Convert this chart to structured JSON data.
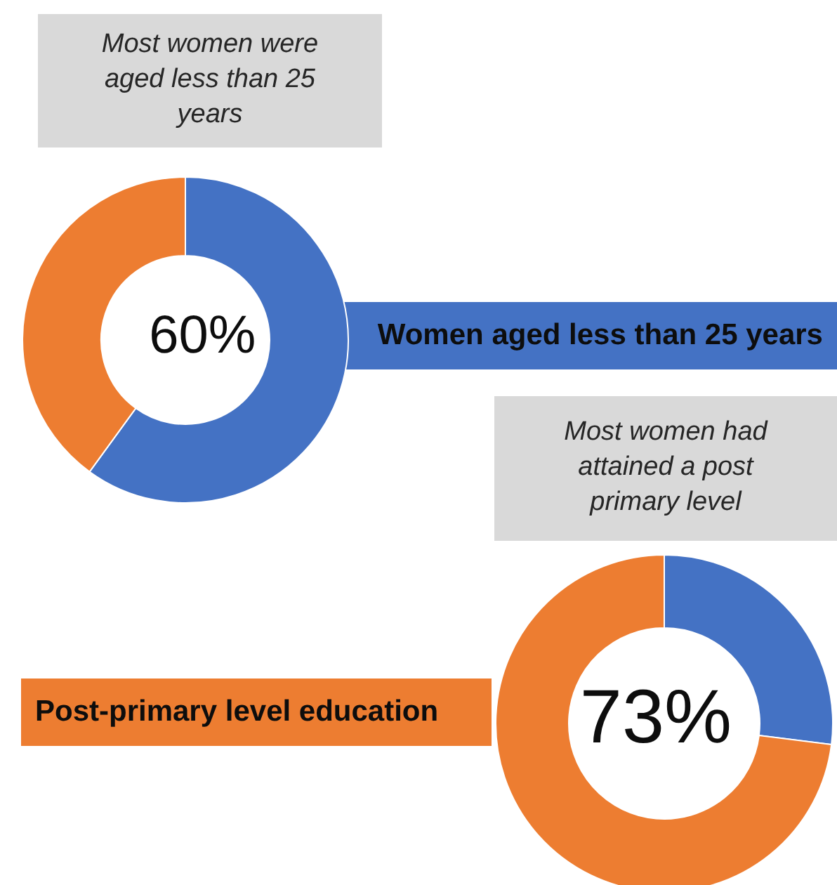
{
  "chart_data": [
    {
      "type": "donut",
      "categories": [
        "Women aged less than 25 years",
        null
      ],
      "values": [
        60,
        40
      ],
      "colors": [
        "#4472c4",
        "#ed7d31"
      ],
      "value_labels": [
        "60%",
        null
      ],
      "annotations": [
        "Most women were aged less than 25 years"
      ]
    },
    {
      "type": "donut",
      "categories": [
        null,
        "Post-primary level education"
      ],
      "values": [
        27,
        73
      ],
      "colors": [
        "#4472c4",
        "#ed7d31"
      ],
      "value_labels": [
        null,
        "73%"
      ],
      "annotations": [
        "Most women had attained a post primary level"
      ]
    }
  ]
}
